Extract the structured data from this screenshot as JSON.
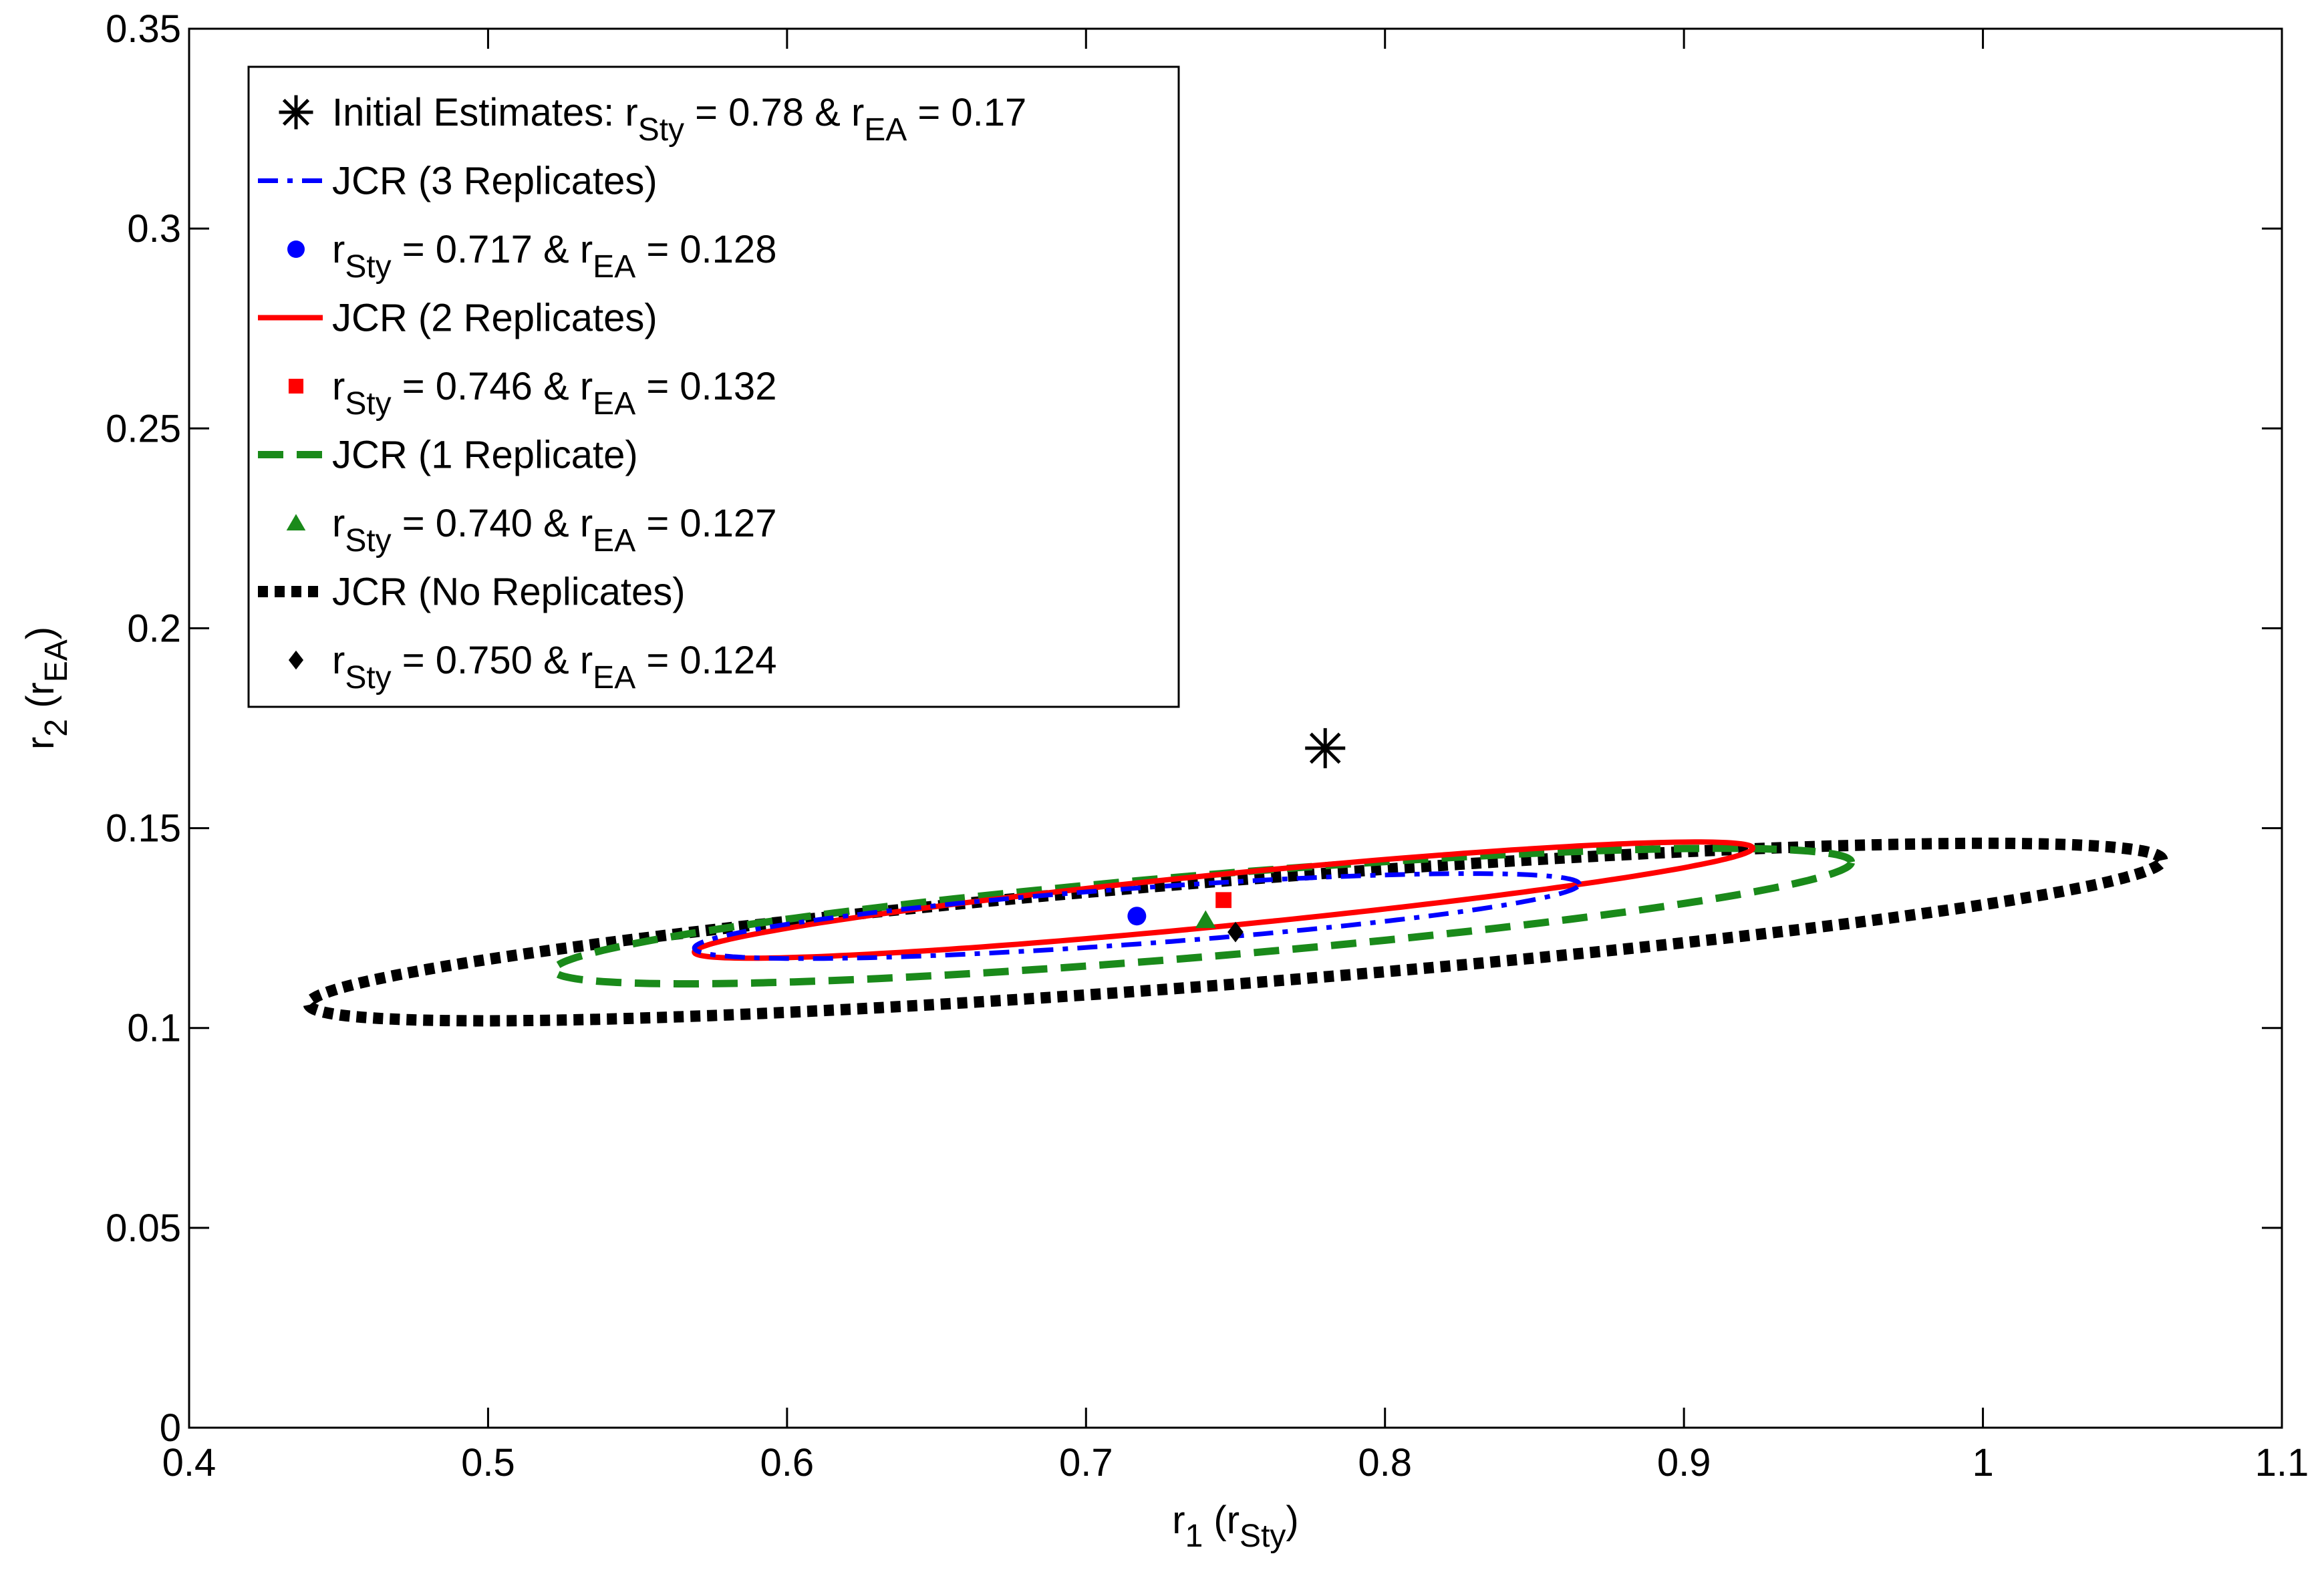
{
  "chart_data": {
    "type": "scatter",
    "title": "",
    "xlabel": {
      "main": "r",
      "sub": "1",
      "paren_main": " (r",
      "paren_sub": "Sty",
      "close": ")"
    },
    "ylabel": {
      "main": "r",
      "sub": "2",
      "paren_main": " (r",
      "paren_sub": "EA",
      "close": ")"
    },
    "xlim": [
      0.4,
      1.1
    ],
    "ylim": [
      0,
      0.35
    ],
    "xticks": [
      0.4,
      0.5,
      0.6,
      0.7,
      0.8,
      0.9,
      1,
      1.1
    ],
    "xtick_labels": [
      "0.4",
      "0.5",
      "0.6",
      "0.7",
      "0.8",
      "0.9",
      "1",
      "1.1"
    ],
    "yticks": [
      0,
      0.05,
      0.1,
      0.15,
      0.2,
      0.25,
      0.3,
      0.35
    ],
    "ytick_labels": [
      "0",
      "0.05",
      "0.1",
      "0.15",
      "0.2",
      "0.25",
      "0.3",
      "0.35"
    ],
    "grid": false,
    "legend_position": "top-left",
    "regions": [
      {
        "name": "JCR (No Replicates)",
        "color": "#000000",
        "style": "dotted-thick",
        "center": [
          0.75,
          0.124
        ],
        "x_range": [
          0.44,
          1.06
        ],
        "y_range": [
          0.102,
          0.146
        ],
        "tilt": 0.018
      },
      {
        "name": "JCR (1 Replicate)",
        "color": "#1a8a1a",
        "style": "dashed",
        "center": [
          0.739,
          0.1265
        ],
        "x_range": [
          0.522,
          0.956
        ],
        "y_range": [
          0.111,
          0.145
        ],
        "tilt": 0.0135
      },
      {
        "name": "JCR (2 Replicates)",
        "color": "#ff0000",
        "style": "solid",
        "center": [
          0.746,
          0.127
        ],
        "x_range": [
          0.569,
          0.923
        ],
        "y_range": [
          0.119,
          0.145
        ],
        "tilt": 0.013
      },
      {
        "name": "JCR (3 Replicates)",
        "color": "#0000ff",
        "style": "dashdot",
        "center": [
          0.717,
          0.128
        ],
        "x_range": [
          0.569,
          0.865
        ],
        "y_range": [
          0.117,
          0.139
        ],
        "tilt": 0.008
      }
    ],
    "points": [
      {
        "name": "Initial Estimates",
        "x": 0.78,
        "y": 0.17,
        "marker": "asterisk",
        "color": "#000000"
      },
      {
        "name": "3 Replicates estimate",
        "x": 0.717,
        "y": 0.128,
        "marker": "circle",
        "color": "#0000ff"
      },
      {
        "name": "2 Replicates estimate",
        "x": 0.746,
        "y": 0.132,
        "marker": "square",
        "color": "#ff0000"
      },
      {
        "name": "1 Replicate estimate",
        "x": 0.74,
        "y": 0.127,
        "marker": "triangle",
        "color": "#1a8a1a"
      },
      {
        "name": "No Replicates estimate",
        "x": 0.75,
        "y": 0.124,
        "marker": "diamond",
        "color": "#000000"
      }
    ],
    "legend": [
      {
        "kind": "marker",
        "marker": "asterisk",
        "color": "#000000",
        "parts": [
          [
            "",
            "Initial Estimates: r"
          ],
          [
            "sub",
            "Sty"
          ],
          [
            "",
            " = 0.78 & r"
          ],
          [
            "sub",
            "EA"
          ],
          [
            "",
            " = 0.17"
          ]
        ]
      },
      {
        "kind": "line",
        "style": "dashdot",
        "color": "#0000ff",
        "parts": [
          [
            "",
            "JCR (3 Replicates)"
          ]
        ]
      },
      {
        "kind": "marker",
        "marker": "circle",
        "color": "#0000ff",
        "parts": [
          [
            "",
            "r"
          ],
          [
            "sub",
            "Sty"
          ],
          [
            "",
            " = 0.717 & r"
          ],
          [
            "sub",
            "EA"
          ],
          [
            "",
            " = 0.128"
          ]
        ]
      },
      {
        "kind": "line",
        "style": "solid",
        "color": "#ff0000",
        "parts": [
          [
            "",
            "JCR (2 Replicates)"
          ]
        ]
      },
      {
        "kind": "marker",
        "marker": "square",
        "color": "#ff0000",
        "parts": [
          [
            "",
            "r"
          ],
          [
            "sub",
            "Sty"
          ],
          [
            "",
            " = 0.746 & r"
          ],
          [
            "sub",
            "EA"
          ],
          [
            "",
            " = 0.132"
          ]
        ]
      },
      {
        "kind": "line",
        "style": "dashed",
        "color": "#1a8a1a",
        "parts": [
          [
            "",
            "JCR (1 Replicate)"
          ]
        ]
      },
      {
        "kind": "marker",
        "marker": "triangle",
        "color": "#1a8a1a",
        "parts": [
          [
            "",
            "r"
          ],
          [
            "sub",
            "Sty"
          ],
          [
            "",
            " = 0.740 & r"
          ],
          [
            "sub",
            "EA"
          ],
          [
            "",
            " = 0.127"
          ]
        ]
      },
      {
        "kind": "line",
        "style": "dotted-thick",
        "color": "#000000",
        "parts": [
          [
            "",
            "JCR (No Replicates)"
          ]
        ]
      },
      {
        "kind": "marker",
        "marker": "diamond",
        "color": "#000000",
        "parts": [
          [
            "",
            "r"
          ],
          [
            "sub",
            "Sty"
          ],
          [
            "",
            " = 0.750 & r"
          ],
          [
            "sub",
            "EA"
          ],
          [
            "",
            " = 0.124"
          ]
        ]
      }
    ]
  }
}
